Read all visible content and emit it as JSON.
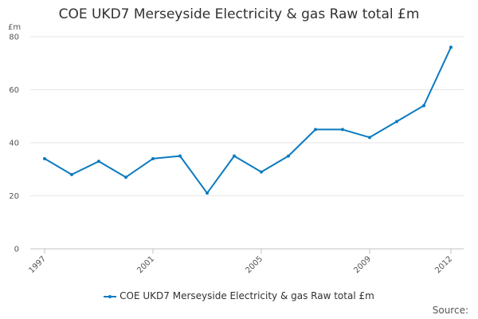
{
  "chart_data": {
    "type": "line",
    "title": "COE UKD7 Merseyside Electricity & gas Raw total £m",
    "ylabel": "£m",
    "xlabel": "",
    "ylim": [
      0,
      80
    ],
    "yticks": [
      0,
      20,
      40,
      60,
      80
    ],
    "xlim": [
      1997,
      2012
    ],
    "xticks": [
      1997,
      2001,
      2005,
      2009,
      2012
    ],
    "grid": true,
    "legend_position": "bottom",
    "series": [
      {
        "name": "COE UKD7 Merseyside Electricity & gas Raw total £m",
        "color": "#0b7bc0",
        "x": [
          1997,
          1998,
          1999,
          2000,
          2001,
          2002,
          2003,
          2004,
          2005,
          2006,
          2007,
          2008,
          2009,
          2010,
          2011,
          2012
        ],
        "values": [
          34,
          28,
          33,
          27,
          34,
          35,
          21,
          35,
          29,
          35,
          45,
          45,
          42,
          48,
          54,
          76
        ]
      }
    ]
  },
  "source_label": "Source:"
}
